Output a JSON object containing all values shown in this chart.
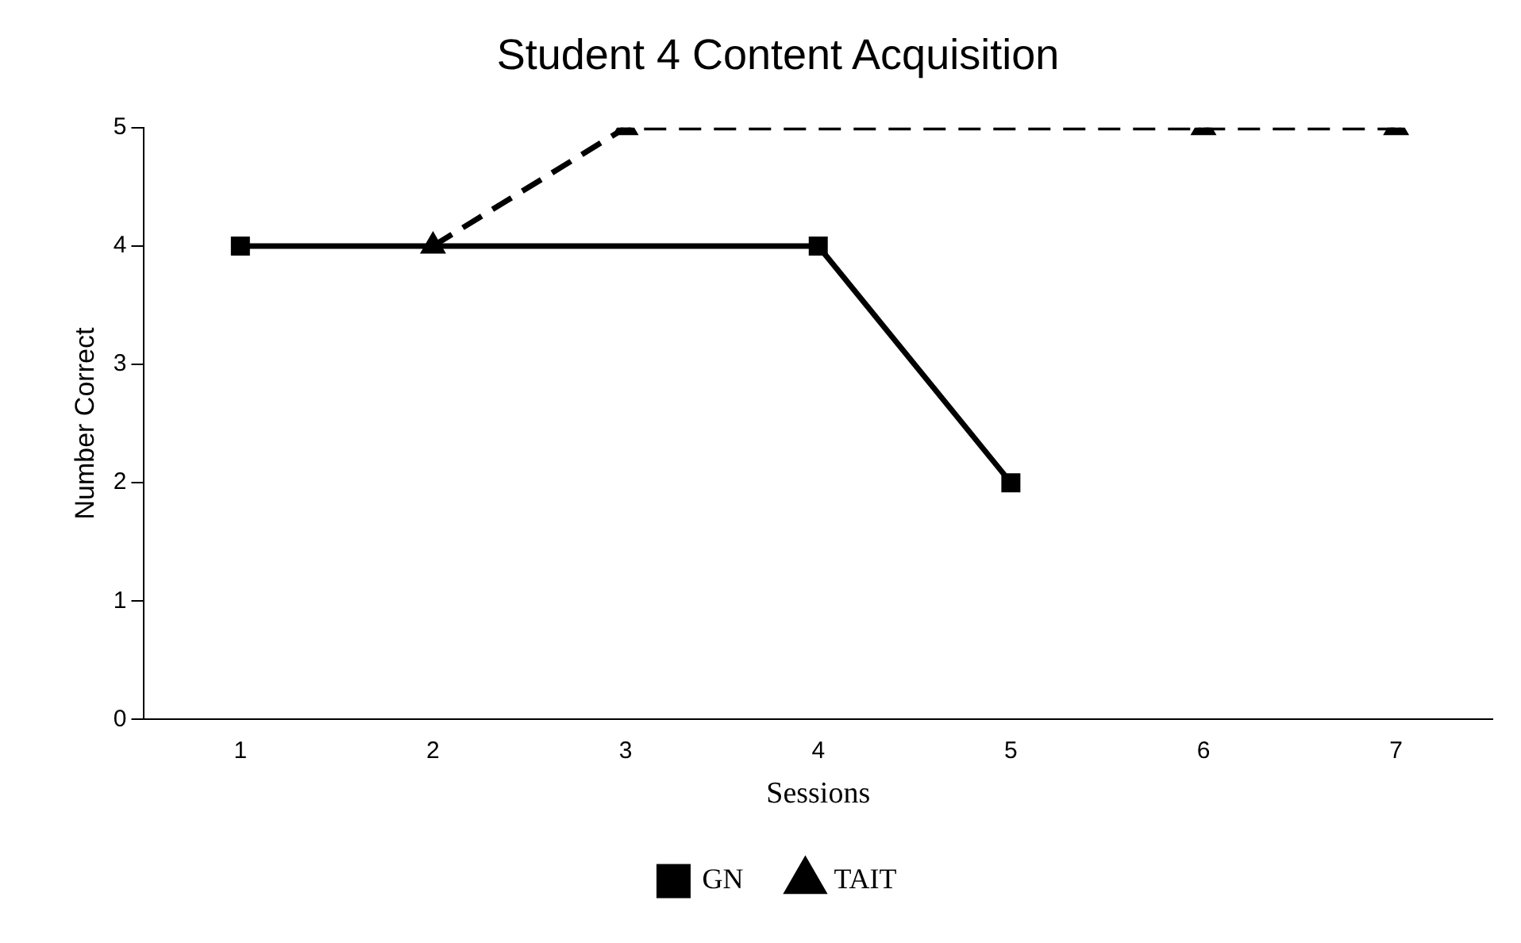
{
  "chart_data": {
    "type": "line",
    "title": "Student 4 Content Acquisition",
    "xlabel": "Sessions",
    "ylabel": "Number Correct",
    "categories": [
      "1",
      "2",
      "3",
      "4",
      "5",
      "6",
      "7"
    ],
    "series": [
      {
        "name": "GN",
        "color": "#000000",
        "values": [
          4,
          null,
          null,
          4,
          2,
          null,
          null
        ],
        "marker": "square",
        "line_style": "solid"
      },
      {
        "name": "TAIT",
        "color": "#000000",
        "values": [
          null,
          4,
          5,
          null,
          null,
          5,
          5
        ],
        "marker": "triangle",
        "line_style": "dashed"
      }
    ],
    "ylim": [
      0,
      5
    ],
    "yticks": [
      0,
      1,
      2,
      3,
      4,
      5
    ],
    "grid": false,
    "legend": "bottom"
  }
}
